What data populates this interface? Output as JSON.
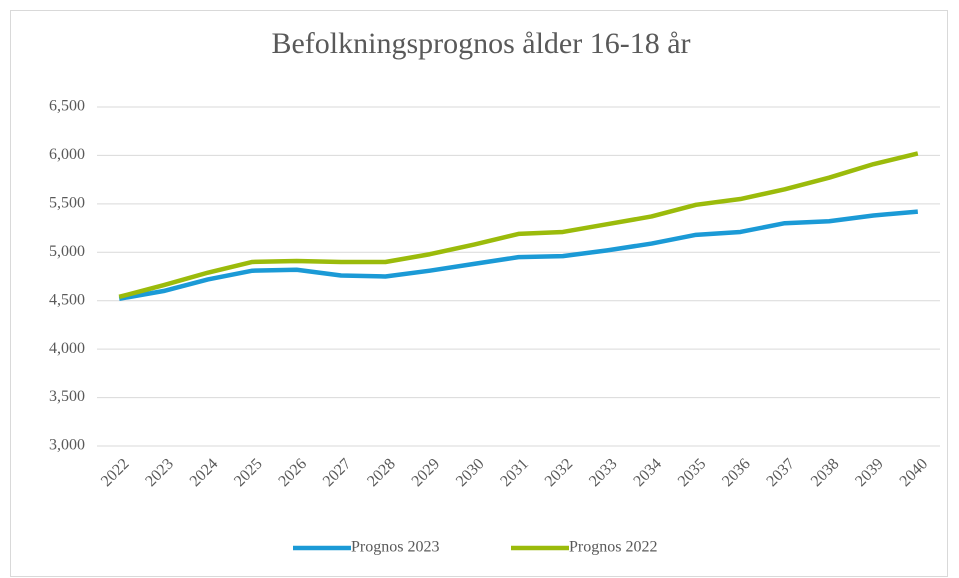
{
  "chart_data": {
    "type": "line",
    "title": "Befolkningsprognos ålder 16-18 år",
    "categories": [
      "2022",
      "2023",
      "2024",
      "2025",
      "2026",
      "2027",
      "2028",
      "2029",
      "2030",
      "2031",
      "2032",
      "2033",
      "2034",
      "2035",
      "2036",
      "2037",
      "2038",
      "2039",
      "2040"
    ],
    "series": [
      {
        "name": "Prognos 2023",
        "color": "#1b9ad6",
        "values": [
          4520,
          4600,
          4720,
          4810,
          4820,
          4760,
          4750,
          4810,
          4880,
          4950,
          4960,
          5020,
          5090,
          5180,
          5210,
          5300,
          5320,
          5380,
          5420
        ]
      },
      {
        "name": "Prognos 2022",
        "color": "#9bbb0b",
        "values": [
          4540,
          4660,
          4790,
          4900,
          4910,
          4900,
          4900,
          4980,
          5080,
          5190,
          5210,
          5290,
          5370,
          5490,
          5550,
          5650,
          5770,
          5910,
          6020
        ]
      }
    ],
    "ylim": [
      3000,
      6500
    ],
    "yticks": [
      {
        "value": 3000,
        "label": "3,000"
      },
      {
        "value": 3500,
        "label": "3,500"
      },
      {
        "value": 4000,
        "label": "4,000"
      },
      {
        "value": 4500,
        "label": "4,500"
      },
      {
        "value": 5000,
        "label": "5,000"
      },
      {
        "value": 5500,
        "label": "5,500"
      },
      {
        "value": 6000,
        "label": "6,000"
      },
      {
        "value": 6500,
        "label": "6,500"
      }
    ],
    "grid": true,
    "legend": "bottom"
  }
}
